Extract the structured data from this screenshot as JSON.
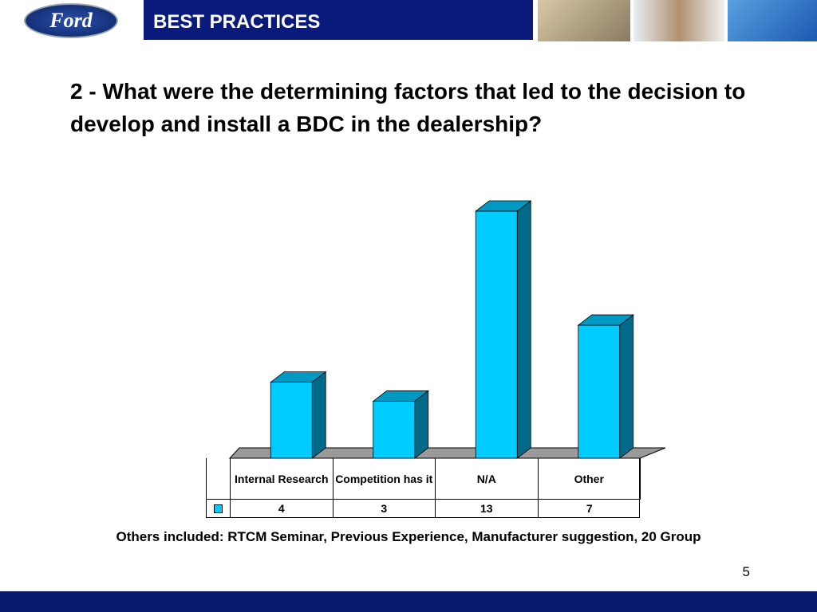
{
  "header": {
    "logo_text": "Ford",
    "section": "BEST PRACTICES"
  },
  "chart_data": {
    "type": "bar3d",
    "title": "2 - What were the determining factors that led to the decision to develop and install a BDC in the dealership?",
    "categories": [
      "Internal Research",
      "Competition has it",
      "N/A",
      "Other"
    ],
    "values": [
      4,
      3,
      13,
      7
    ],
    "color": "#00ccff",
    "side_color": "#006a88",
    "top_color": "#0099c4",
    "note": "Others included: RTCM Seminar, Previous Experience, Manufacturer suggestion, 20 Group"
  },
  "page_number": "5"
}
